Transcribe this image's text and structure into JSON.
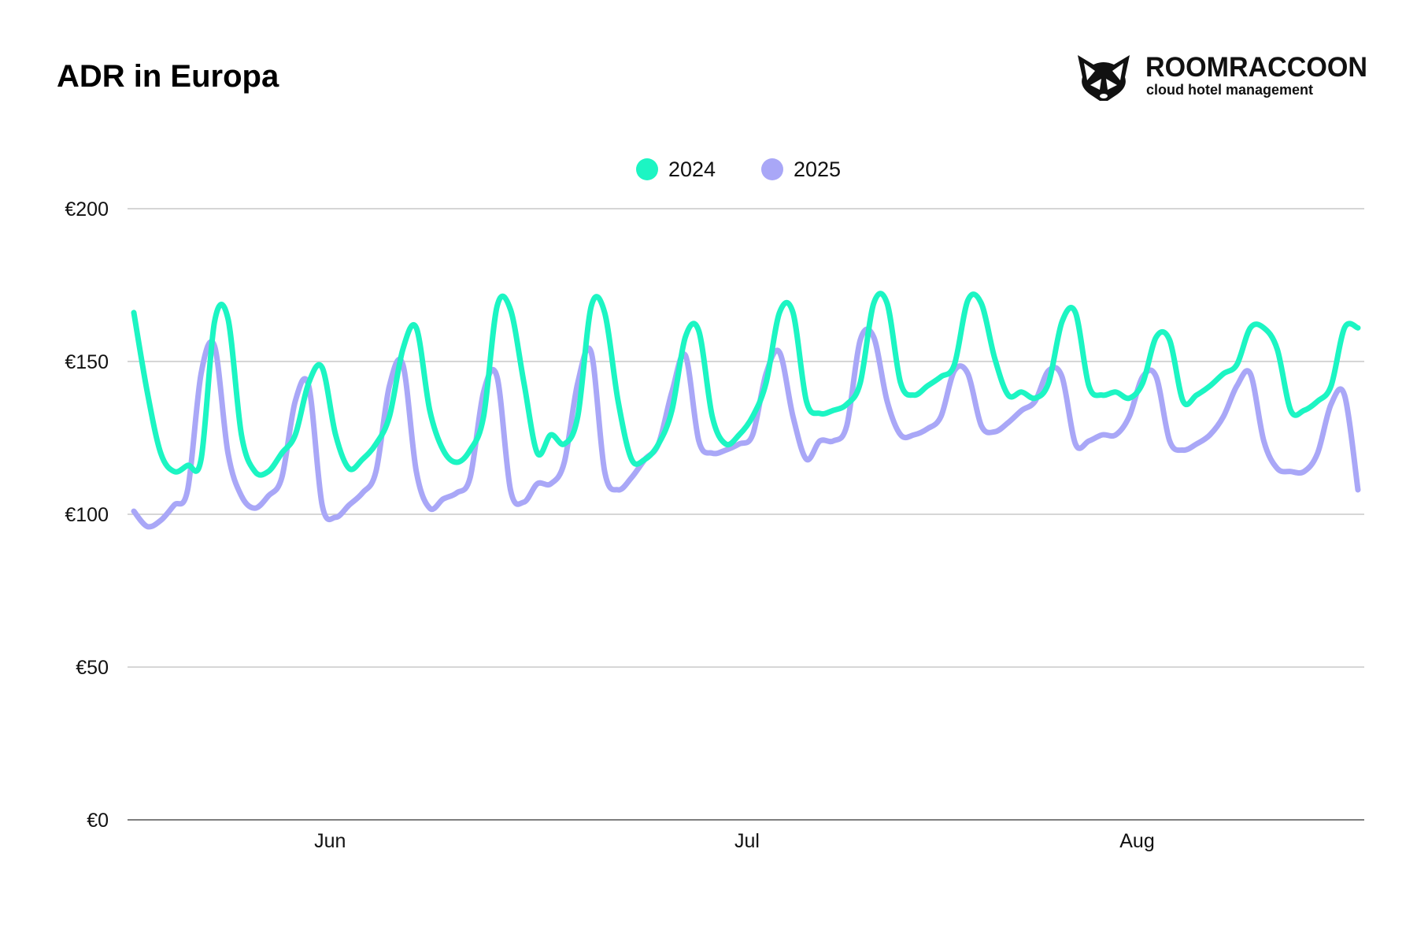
{
  "chart_data": {
    "type": "line",
    "title": "ADR in Europa",
    "xlabel": "",
    "ylabel": "",
    "ylim": [
      0,
      200
    ],
    "yticks": [
      "€0",
      "€50",
      "€100",
      "€150",
      "€200"
    ],
    "ytick_values": [
      0,
      50,
      100,
      150,
      200
    ],
    "xticks": [
      {
        "label": "Jun",
        "index": 14
      },
      {
        "label": "Jul",
        "index": 45
      },
      {
        "label": "Aug",
        "index": 74
      }
    ],
    "grid": true,
    "legend_placement": "top-center",
    "series": [
      {
        "name": "2024",
        "color": "#1CF5C3",
        "values": [
          166,
          140,
          120,
          114,
          116,
          118,
          163,
          164,
          126,
          114,
          114,
          120,
          126,
          143,
          148,
          126,
          115,
          118,
          123,
          132,
          154,
          161,
          134,
          121,
          117,
          121,
          132,
          168,
          167,
          143,
          120,
          126,
          123,
          132,
          168,
          166,
          137,
          118,
          118,
          123,
          134,
          158,
          160,
          132,
          123,
          126,
          132,
          143,
          166,
          166,
          137,
          133,
          134,
          136,
          143,
          169,
          169,
          143,
          139,
          142,
          145,
          149,
          170,
          169,
          151,
          139,
          140,
          138,
          143,
          163,
          166,
          142,
          139,
          140,
          138,
          143,
          158,
          157,
          137,
          139,
          142,
          146,
          149,
          161,
          161,
          154,
          134,
          134,
          137,
          142,
          161,
          161
        ]
      },
      {
        "name": "2025",
        "color": "#A9A7F7",
        "values": [
          101,
          96,
          98,
          103,
          108,
          146,
          155,
          120,
          106,
          102,
          106,
          112,
          137,
          142,
          103,
          99,
          103,
          107,
          114,
          142,
          149,
          114,
          102,
          105,
          107,
          112,
          140,
          145,
          108,
          104,
          110,
          110,
          117,
          143,
          153,
          114,
          108,
          112,
          118,
          123,
          140,
          152,
          124,
          120,
          121,
          123,
          126,
          146,
          153,
          132,
          118,
          124,
          124,
          129,
          157,
          158,
          137,
          126,
          126,
          128,
          132,
          147,
          146,
          129,
          127,
          130,
          134,
          137,
          147,
          145,
          123,
          124,
          126,
          126,
          132,
          145,
          145,
          124,
          121,
          123,
          126,
          132,
          142,
          146,
          124,
          115,
          114,
          114,
          120,
          136,
          139,
          108
        ]
      }
    ]
  },
  "logo": {
    "brand": "ROOMRACCOON",
    "tagline": "cloud hotel management"
  }
}
